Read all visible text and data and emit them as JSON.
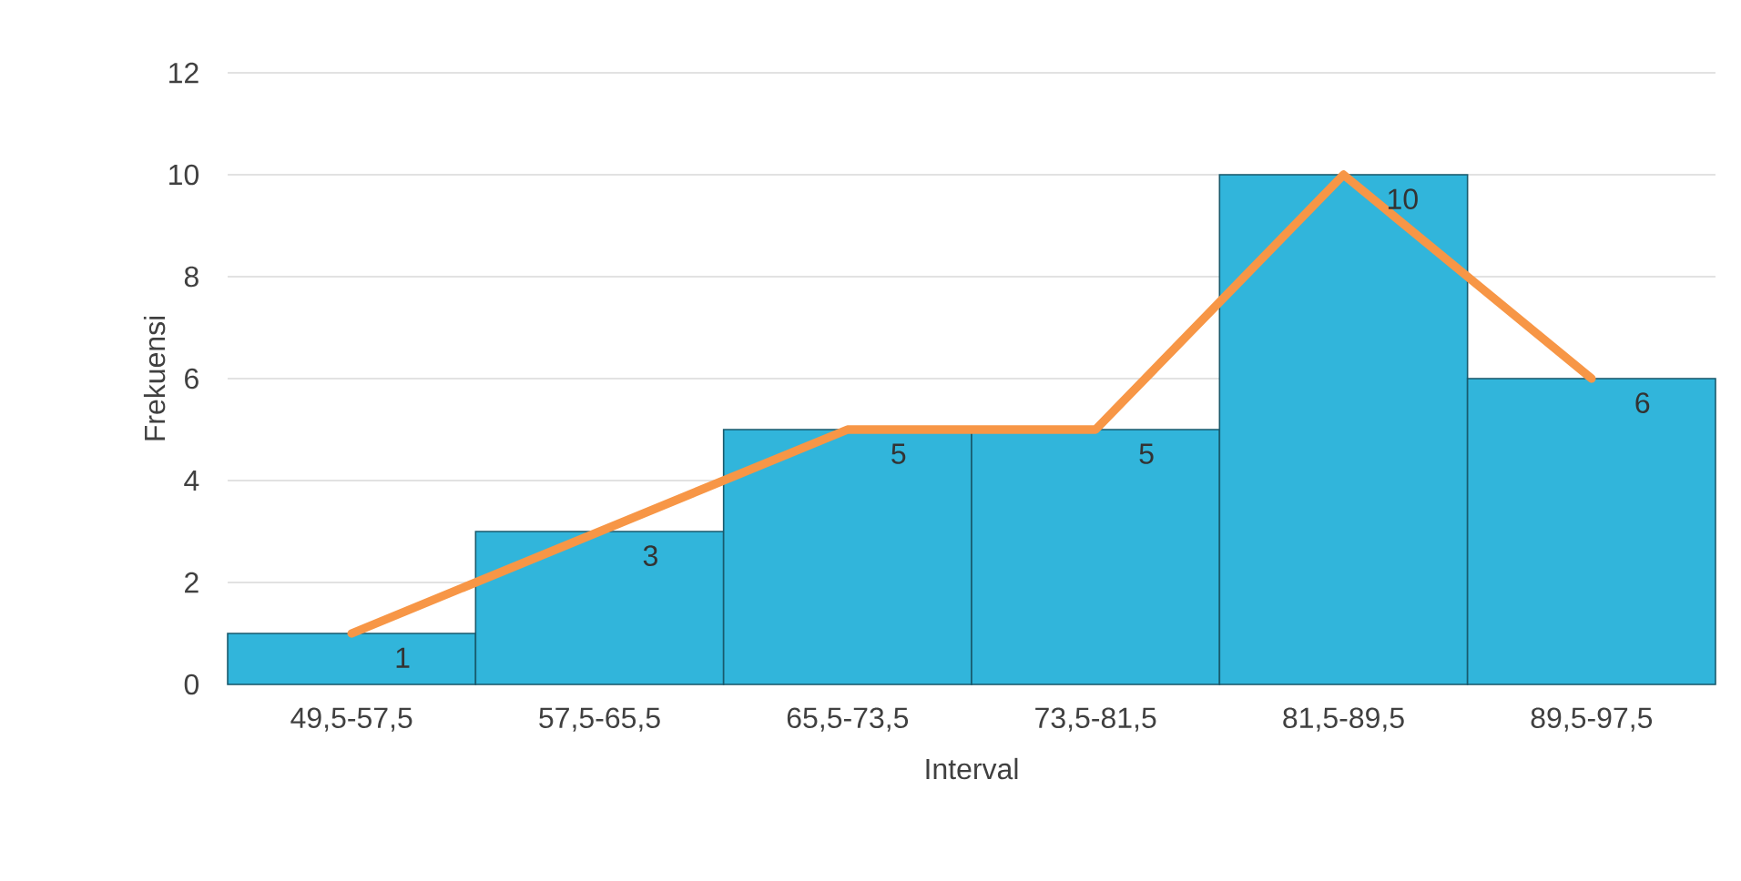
{
  "chart_data": {
    "type": "bar",
    "xlabel": "Interval",
    "ylabel": "Frekuensi",
    "categories": [
      "49,5-57,5",
      "57,5-65,5",
      "65,5-73,5",
      "73,5-81,5",
      "81,5-89,5",
      "89,5-97,5"
    ],
    "series": [
      {
        "color": "#31b5db",
        "values": [
          1,
          3,
          5,
          5,
          10,
          6
        ],
        "value_labels": [
          "1",
          "3",
          "5",
          "5",
          "10",
          "6"
        ]
      },
      {
        "type": "line",
        "color": "#f79646",
        "values": [
          1,
          3,
          5,
          5,
          10,
          6
        ]
      }
    ],
    "ylim": [
      0,
      12
    ],
    "yticks": [
      0,
      2,
      4,
      6,
      8,
      10,
      12
    ],
    "grid": "y"
  }
}
